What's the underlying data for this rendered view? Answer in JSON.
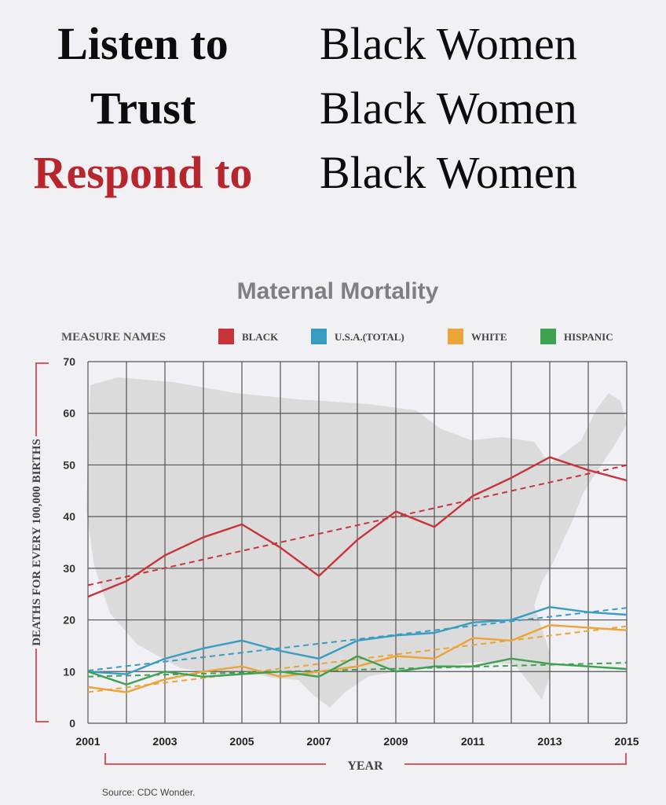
{
  "headline": {
    "rows": [
      {
        "left": "Listen to",
        "right": "Black Women"
      },
      {
        "left": "Trust",
        "right": "Black Women"
      },
      {
        "left": "Respond to",
        "right": "Black Women"
      }
    ],
    "colors": {
      "normal": "#0c0c0c",
      "emphasis": "#b7262c"
    }
  },
  "chart_data": {
    "type": "line",
    "title": "Maternal Mortality",
    "legend_title": "MEASURE NAMES",
    "legend_position": "top",
    "xlabel": "YEAR",
    "ylabel": "DEATHS FOR EVERY 100,000 BIRTHS",
    "x": [
      2001,
      2002,
      2003,
      2004,
      2005,
      2006,
      2007,
      2008,
      2009,
      2010,
      2011,
      2012,
      2013,
      2014,
      2015
    ],
    "x_tick_labels": [
      "2001",
      "2003",
      "2005",
      "2007",
      "2009",
      "2011",
      "2013",
      "2015"
    ],
    "y_tick_labels": [
      "0",
      "10",
      "20",
      "30",
      "40",
      "50",
      "60",
      "70"
    ],
    "xlim": [
      2001,
      2015
    ],
    "ylim": [
      0,
      70
    ],
    "grid": true,
    "background_image": "united-states-map-silhouette",
    "trendlines": "dashed linear trend per series",
    "series": [
      {
        "name": "BLACK",
        "color": "#c9343a",
        "values": [
          24.5,
          27.5,
          32.5,
          36,
          38.5,
          34,
          28.5,
          35.5,
          41,
          38,
          44,
          47.5,
          51.5,
          49,
          47
        ]
      },
      {
        "name": "U.S.A.(TOTAL)",
        "color": "#3a9cc0",
        "values": [
          10,
          9.5,
          12.5,
          14.5,
          16,
          14,
          12.5,
          16,
          17,
          17.5,
          19.5,
          20,
          22.5,
          21.5,
          21
        ]
      },
      {
        "name": "WHITE",
        "color": "#eba436",
        "values": [
          7,
          6,
          8.5,
          10,
          11,
          9,
          10,
          11,
          13,
          12.5,
          16.5,
          16,
          19,
          18.5,
          18
        ]
      },
      {
        "name": "HISPANIC",
        "color": "#3ea14f",
        "values": [
          10,
          7.5,
          10,
          9,
          9.5,
          10,
          9,
          13,
          10,
          11,
          11,
          12.5,
          11.5,
          11,
          10.5
        ]
      }
    ]
  },
  "source": "Source: CDC Wonder."
}
